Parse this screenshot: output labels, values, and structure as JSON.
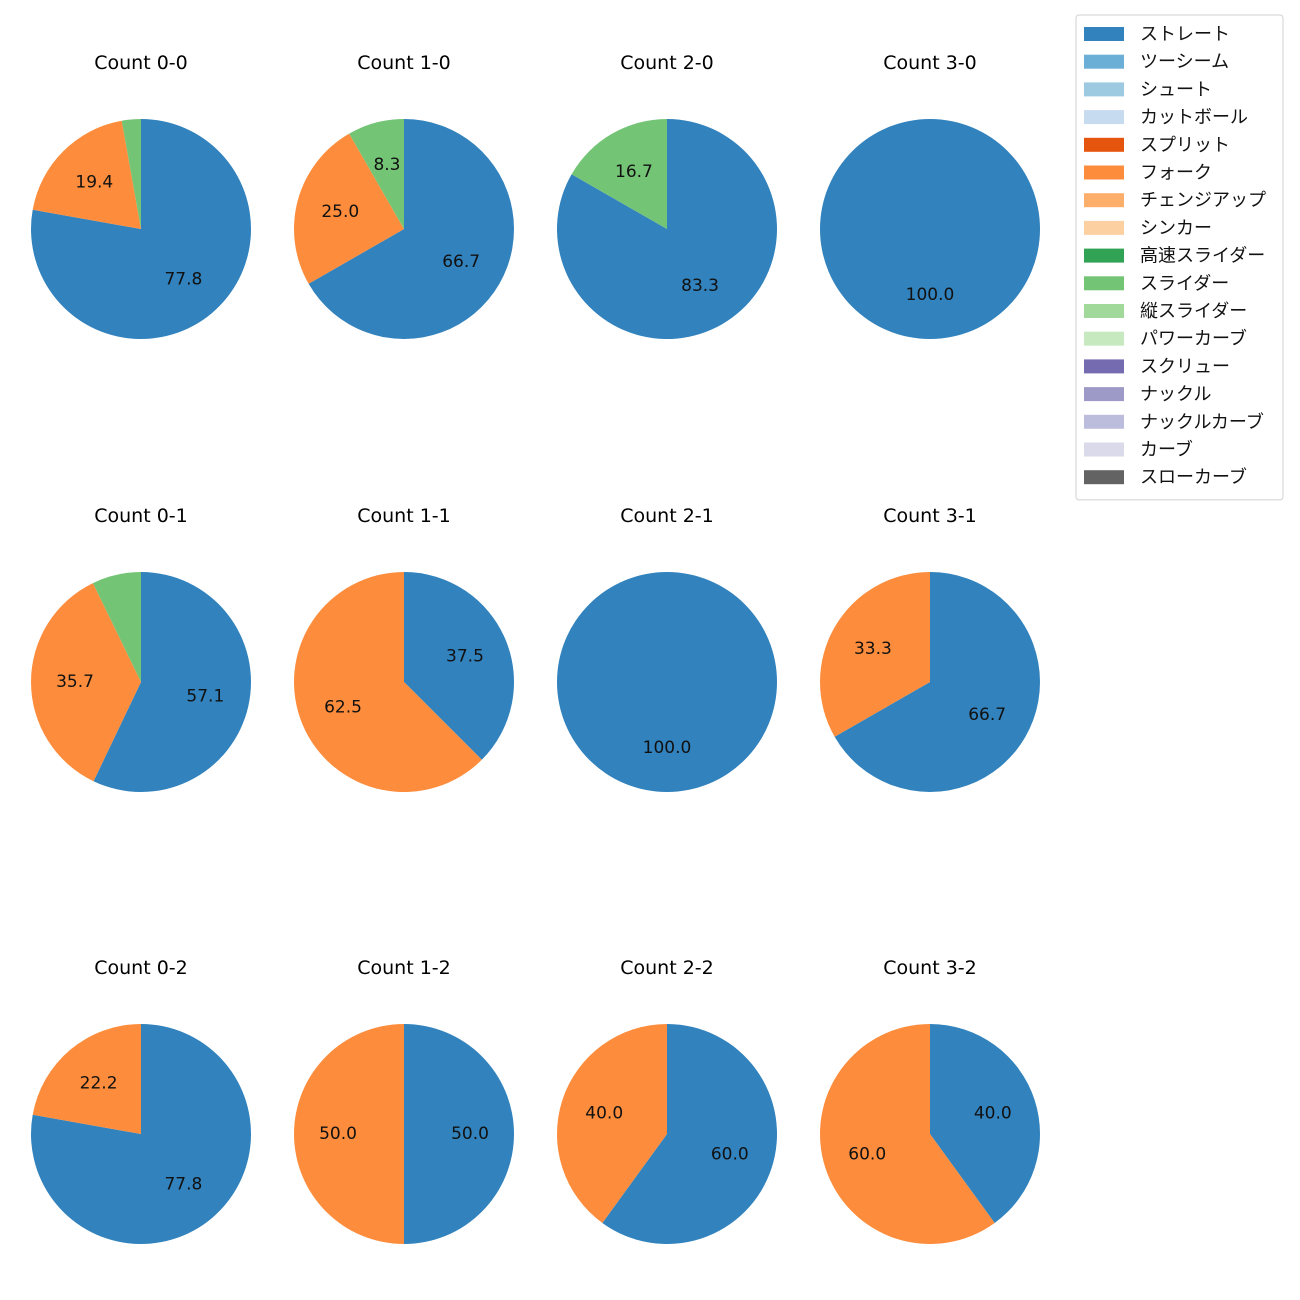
{
  "chart_data": {
    "type": "pie",
    "colors": {
      "ストレート": "#3182bd",
      "ツーシーム": "#6baed6",
      "シュート": "#9ecae1",
      "カットボール": "#c6dbef",
      "スプリット": "#e6550d",
      "フォーク": "#fd8d3c",
      "チェンジアップ": "#fdae6b",
      "シンカー": "#fdd0a2",
      "高速スライダー": "#31a354",
      "スライダー": "#74c476",
      "縦スライダー": "#a1d99b",
      "パワーカーブ": "#c7e9c0",
      "スクリュー": "#756bb1",
      "ナックル": "#9e9ac8",
      "ナックルカーブ": "#bcbddc",
      "カーブ": "#dadaeb",
      "スローカーブ": "#636363"
    },
    "legend": [
      "ストレート",
      "ツーシーム",
      "シュート",
      "カットボール",
      "スプリット",
      "フォーク",
      "チェンジアップ",
      "シンカー",
      "高速スライダー",
      "スライダー",
      "縦スライダー",
      "パワーカーブ",
      "スクリュー",
      "ナックル",
      "ナックルカーブ",
      "カーブ",
      "スローカーブ"
    ],
    "legend_position": "top-right",
    "charts": [
      {
        "title": "Count 0-0",
        "slices": [
          {
            "pitch": "ストレート",
            "value": 77.8,
            "label": "77.8"
          },
          {
            "pitch": "フォーク",
            "value": 19.4,
            "label": "19.4"
          },
          {
            "pitch": "スライダー",
            "value": 2.8,
            "label": ""
          }
        ]
      },
      {
        "title": "Count 1-0",
        "slices": [
          {
            "pitch": "ストレート",
            "value": 66.7,
            "label": "66.7"
          },
          {
            "pitch": "フォーク",
            "value": 25.0,
            "label": "25.0"
          },
          {
            "pitch": "スライダー",
            "value": 8.3,
            "label": "8.3"
          }
        ]
      },
      {
        "title": "Count 2-0",
        "slices": [
          {
            "pitch": "ストレート",
            "value": 83.3,
            "label": "83.3"
          },
          {
            "pitch": "スライダー",
            "value": 16.7,
            "label": "16.7"
          }
        ]
      },
      {
        "title": "Count 3-0",
        "slices": [
          {
            "pitch": "ストレート",
            "value": 100.0,
            "label": "100.0"
          }
        ]
      },
      {
        "title": "Count 0-1",
        "slices": [
          {
            "pitch": "ストレート",
            "value": 57.1,
            "label": "57.1"
          },
          {
            "pitch": "フォーク",
            "value": 35.7,
            "label": "35.7"
          },
          {
            "pitch": "スライダー",
            "value": 7.2,
            "label": ""
          }
        ]
      },
      {
        "title": "Count 1-1",
        "slices": [
          {
            "pitch": "ストレート",
            "value": 37.5,
            "label": "37.5"
          },
          {
            "pitch": "フォーク",
            "value": 62.5,
            "label": "62.5"
          }
        ]
      },
      {
        "title": "Count 2-1",
        "slices": [
          {
            "pitch": "ストレート",
            "value": 100.0,
            "label": "100.0"
          }
        ]
      },
      {
        "title": "Count 3-1",
        "slices": [
          {
            "pitch": "ストレート",
            "value": 66.7,
            "label": "66.7"
          },
          {
            "pitch": "フォーク",
            "value": 33.3,
            "label": "33.3"
          }
        ]
      },
      {
        "title": "Count 0-2",
        "slices": [
          {
            "pitch": "ストレート",
            "value": 77.8,
            "label": "77.8"
          },
          {
            "pitch": "フォーク",
            "value": 22.2,
            "label": "22.2"
          }
        ]
      },
      {
        "title": "Count 1-2",
        "slices": [
          {
            "pitch": "ストレート",
            "value": 50.0,
            "label": "50.0"
          },
          {
            "pitch": "フォーク",
            "value": 50.0,
            "label": "50.0"
          }
        ]
      },
      {
        "title": "Count 2-2",
        "slices": [
          {
            "pitch": "ストレート",
            "value": 60.0,
            "label": "60.0"
          },
          {
            "pitch": "フォーク",
            "value": 40.0,
            "label": "40.0"
          }
        ]
      },
      {
        "title": "Count 3-2",
        "slices": [
          {
            "pitch": "ストレート",
            "value": 40.0,
            "label": "40.0"
          },
          {
            "pitch": "フォーク",
            "value": 60.0,
            "label": "60.0"
          }
        ]
      }
    ]
  }
}
